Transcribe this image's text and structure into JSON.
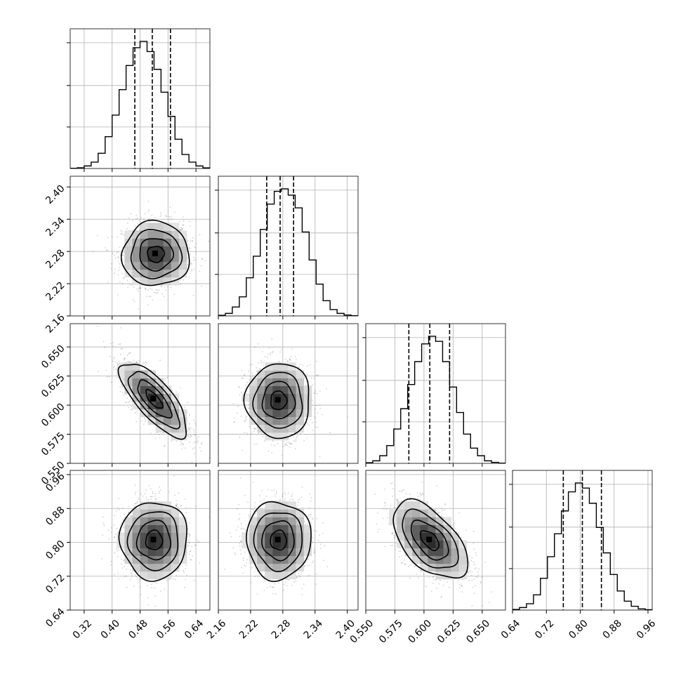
{
  "chart_data": {
    "type": "corner",
    "parameters": [
      {
        "range": [
          0.28,
          0.68
        ],
        "ticks": [
          0.32,
          0.4,
          0.48,
          0.56,
          0.64
        ],
        "tick_labels": [
          "0.32",
          "0.40",
          "0.48",
          "0.56",
          "0.64"
        ],
        "quantiles": [
          0.465,
          0.515,
          0.567
        ],
        "hist_bins": [
          0.28,
          0.3,
          0.32,
          0.34,
          0.36,
          0.38,
          0.4,
          0.42,
          0.44,
          0.46,
          0.48,
          0.5,
          0.52,
          0.54,
          0.56,
          0.58,
          0.6,
          0.62,
          0.64,
          0.66,
          0.68
        ],
        "hist_counts": [
          0.002,
          0.006,
          0.02,
          0.05,
          0.12,
          0.25,
          0.42,
          0.62,
          0.81,
          0.95,
          1.0,
          0.92,
          0.78,
          0.6,
          0.41,
          0.23,
          0.11,
          0.05,
          0.02,
          0.005
        ]
      },
      {
        "range": [
          2.16,
          2.42
        ],
        "ticks": [
          2.16,
          2.22,
          2.28,
          2.34,
          2.4
        ],
        "tick_labels": [
          "2.16",
          "2.22",
          "2.28",
          "2.34",
          "2.40"
        ],
        "quantiles": [
          2.25,
          2.275,
          2.3
        ],
        "hist_bins": [
          2.16,
          2.173,
          2.186,
          2.199,
          2.212,
          2.225,
          2.238,
          2.251,
          2.264,
          2.277,
          2.29,
          2.303,
          2.316,
          2.329,
          2.342,
          2.355,
          2.368,
          2.381,
          2.394,
          2.407,
          2.42
        ],
        "hist_counts": [
          0.005,
          0.02,
          0.07,
          0.15,
          0.3,
          0.47,
          0.68,
          0.88,
          0.98,
          1.0,
          0.95,
          0.85,
          0.66,
          0.44,
          0.25,
          0.12,
          0.05,
          0.02,
          0.007,
          0.002
        ]
      },
      {
        "range": [
          0.55,
          0.67
        ],
        "ticks": [
          0.55,
          0.575,
          0.6,
          0.625,
          0.65
        ],
        "tick_labels": [
          "0.550",
          "0.575",
          "0.600",
          "0.625",
          "0.650"
        ],
        "quantiles": [
          0.587,
          0.605,
          0.622
        ],
        "hist_bins": [
          0.55,
          0.556,
          0.562,
          0.568,
          0.574,
          0.58,
          0.586,
          0.592,
          0.598,
          0.604,
          0.61,
          0.616,
          0.622,
          0.628,
          0.634,
          0.64,
          0.646,
          0.652,
          0.658,
          0.664,
          0.67
        ],
        "hist_counts": [
          0.005,
          0.02,
          0.06,
          0.14,
          0.27,
          0.43,
          0.62,
          0.8,
          0.94,
          1.0,
          0.96,
          0.8,
          0.6,
          0.4,
          0.23,
          0.12,
          0.06,
          0.02,
          0.008,
          0.002
        ]
      },
      {
        "range": [
          0.64,
          0.97
        ],
        "ticks": [
          0.64,
          0.72,
          0.8,
          0.88,
          0.96
        ],
        "tick_labels": [
          "0.64",
          "0.72",
          "0.80",
          "0.88",
          "0.96"
        ],
        "quantiles": [
          0.76,
          0.805,
          0.85
        ],
        "hist_bins": [
          0.64,
          0.6565,
          0.673,
          0.6895,
          0.706,
          0.7225,
          0.739,
          0.7555,
          0.772,
          0.7885,
          0.805,
          0.8215,
          0.838,
          0.8545,
          0.871,
          0.8875,
          0.904,
          0.9205,
          0.937,
          0.9535,
          0.97
        ],
        "hist_counts": [
          0.005,
          0.02,
          0.05,
          0.12,
          0.25,
          0.42,
          0.6,
          0.78,
          0.93,
          1.0,
          0.96,
          0.84,
          0.65,
          0.45,
          0.28,
          0.15,
          0.07,
          0.03,
          0.01,
          0.003
        ]
      }
    ],
    "pairs": [
      {
        "x": 0,
        "y": 1,
        "mean": [
          0.525,
          2.275
        ],
        "sd": [
          0.048,
          0.03
        ],
        "rho": 0.0
      },
      {
        "x": 0,
        "y": 2,
        "mean": [
          0.52,
          0.605
        ],
        "sd": [
          0.048,
          0.016
        ],
        "rho": -0.75
      },
      {
        "x": 1,
        "y": 2,
        "mean": [
          2.272,
          0.604
        ],
        "sd": [
          0.03,
          0.016
        ],
        "rho": 0.0
      },
      {
        "x": 0,
        "y": 3,
        "mean": [
          0.52,
          0.805
        ],
        "sd": [
          0.048,
          0.046
        ],
        "rho": 0.0
      },
      {
        "x": 1,
        "y": 3,
        "mean": [
          2.272,
          0.805
        ],
        "sd": [
          0.03,
          0.046
        ],
        "rho": 0.0
      },
      {
        "x": 2,
        "y": 3,
        "mean": [
          0.605,
          0.805
        ],
        "sd": [
          0.016,
          0.046
        ],
        "rho": -0.55
      }
    ],
    "grid": true,
    "title": "",
    "xlabel": "",
    "ylabel": ""
  }
}
